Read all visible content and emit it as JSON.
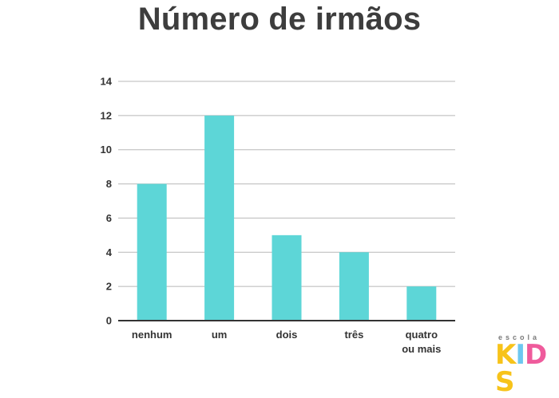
{
  "chart_data": {
    "type": "bar",
    "title": "Número de irmãos",
    "categories": [
      [
        "nenhum"
      ],
      [
        "um"
      ],
      [
        "dois"
      ],
      [
        "três"
      ],
      [
        "quatro",
        "ou mais"
      ]
    ],
    "values": [
      8,
      12,
      5,
      4,
      2
    ],
    "ylim": [
      0,
      14
    ],
    "yticks": [
      0,
      2,
      4,
      6,
      8,
      10,
      12,
      14
    ],
    "grid": true,
    "bar_color": "#5dd6d7"
  },
  "logo": {
    "top_text": "escola",
    "letters": [
      "K",
      "I",
      "D",
      "S"
    ],
    "letter_colors": [
      "#f7c31a",
      "#6dc7f0",
      "#ef5b9c",
      "#f7c31a"
    ]
  }
}
